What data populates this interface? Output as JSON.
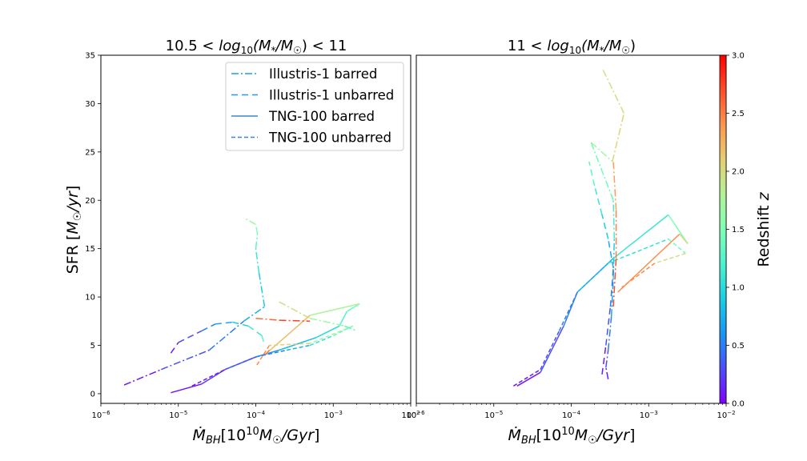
{
  "chart_data": [
    {
      "type": "line",
      "title": "10.5 < log10(M*/M☉) < 11",
      "title_parts": {
        "a": "10.5 < ",
        "b": "log",
        "sub": "10",
        "c": "(M",
        "d": "*",
        "e": "/M",
        "f": "☉",
        "g": ") < 11"
      },
      "xlabel": "Ṁ_BH [10^10 M☉/Gyr]",
      "ylabel": "SFR [M☉/yr]",
      "xscale": "log",
      "xlim": [
        1e-06,
        0.01
      ],
      "ylim": [
        -1,
        35
      ],
      "yticks": [
        "0",
        "5",
        "10",
        "15",
        "20",
        "25",
        "30",
        "35"
      ],
      "xticks": [
        {
          "base": "10",
          "exp": "−6"
        },
        {
          "base": "10",
          "exp": "−5"
        },
        {
          "base": "10",
          "exp": "−4"
        },
        {
          "base": "10",
          "exp": "−3"
        },
        {
          "base": "10",
          "exp": "−2"
        }
      ],
      "grid": false,
      "legend_position": "upper-right",
      "series": [
        {
          "name": "Illustris-1 barred",
          "style": "dashdot",
          "x": [
            2e-06,
            6e-06,
            2.5e-05,
            7e-05,
            0.00013,
            0.00011,
            0.0001,
            0.000105,
            0.0001,
            7e-05
          ],
          "y": [
            0.9,
            2.5,
            4.5,
            7.5,
            9.0,
            12.5,
            15.0,
            16.5,
            17.5,
            18.2
          ],
          "z": [
            0.0,
            0.2,
            0.4,
            0.6,
            0.8,
            1.0,
            1.2,
            1.4,
            1.6,
            1.8
          ]
        },
        {
          "name": "Illustris-1 unbarred",
          "style": "dashed",
          "x": [
            8e-06,
            1e-05,
            2e-05,
            3e-05,
            5e-05,
            8e-05,
            0.00012,
            0.00013
          ],
          "y": [
            4.2,
            5.3,
            6.5,
            7.2,
            7.4,
            7.0,
            6.0,
            5.0
          ],
          "z": [
            0.0,
            0.2,
            0.4,
            0.6,
            0.8,
            1.0,
            1.2,
            1.4
          ]
        },
        {
          "name": "TNG-100 barred",
          "style": "solid",
          "x": [
            8e-06,
            2e-05,
            4e-05,
            0.0001,
            0.0002,
            0.0006,
            0.0012,
            0.0015,
            0.0022,
            0.0005,
            0.00013,
            0.00015
          ],
          "y": [
            0.1,
            1.0,
            2.5,
            3.8,
            4.5,
            5.8,
            7.0,
            8.5,
            9.3,
            8.1,
            4.0,
            4.5
          ],
          "z": [
            0.0,
            0.15,
            0.3,
            0.5,
            0.7,
            0.9,
            1.1,
            1.3,
            1.5,
            2.0,
            2.4,
            2.6
          ]
        },
        {
          "name": "TNG-100 unbarred",
          "style": "longdash",
          "x": [
            1.5e-05,
            4e-05,
            0.0001,
            0.00025,
            0.0005,
            0.001,
            0.0018,
            0.0005,
            0.00015,
            0.0001
          ],
          "y": [
            0.8,
            2.5,
            3.8,
            4.5,
            5.0,
            6.0,
            7.0,
            5.2,
            5.0,
            2.8
          ],
          "z": [
            0.0,
            0.2,
            0.4,
            0.6,
            0.9,
            1.2,
            1.5,
            1.9,
            2.3,
            2.6
          ]
        },
        {
          "name": "Illustris-1 barred (high z)",
          "style": "dashdot",
          "x": [
            0.0001,
            0.0002,
            0.0005
          ],
          "y": [
            7.8,
            7.6,
            7.5
          ],
          "z": [
            2.5,
            2.7,
            2.8
          ]
        },
        {
          "name": "Illustris-1 barred (mid z)",
          "style": "dashdot",
          "x": [
            0.0002,
            0.0005,
            0.0014,
            0.002
          ],
          "y": [
            9.5,
            7.8,
            7.0,
            6.5
          ],
          "z": [
            1.9,
            2.1,
            1.2,
            1.3
          ]
        }
      ]
    },
    {
      "type": "line",
      "title": "11 < log10(M*/M☉)",
      "title_parts": {
        "a": "11 < ",
        "b": "log",
        "sub": "10",
        "c": "(M",
        "d": "*",
        "e": "/M",
        "f": "☉",
        "g": ")"
      },
      "xlabel": "Ṁ_BH [10^10 M☉/Gyr]",
      "xscale": "log",
      "xlim": [
        1e-06,
        0.01
      ],
      "ylim": [
        -1,
        35
      ],
      "xticks": [
        {
          "base": "10",
          "exp": "−6"
        },
        {
          "base": "10",
          "exp": "−5"
        },
        {
          "base": "10",
          "exp": "−4"
        },
        {
          "base": "10",
          "exp": "−3"
        },
        {
          "base": "10",
          "exp": "−2"
        }
      ],
      "grid": false,
      "series": [
        {
          "name": "Illustris-1 barred",
          "style": "dashdot",
          "x": [
            0.0003,
            0.00028,
            0.0003,
            0.00033,
            0.00035,
            0.00036,
            0.00035,
            0.00018,
            0.00034,
            0.00048,
            0.00025
          ],
          "y": [
            1.5,
            2.7,
            4.5,
            8.0,
            12.0,
            16.0,
            20.0,
            26.0,
            24.0,
            29.0,
            33.7
          ],
          "z": [
            0.0,
            0.2,
            0.4,
            0.6,
            0.8,
            1.0,
            1.3,
            1.5,
            1.9,
            2.2,
            1.7
          ]
        },
        {
          "name": "Illustris-1 unbarred",
          "style": "dashed",
          "x": [
            0.00025,
            0.00028,
            0.00032,
            0.00035,
            0.0003,
            0.00025,
            0.0002,
            0.00017
          ],
          "y": [
            2.0,
            5.0,
            9.0,
            13.0,
            16.0,
            18.5,
            21.5,
            24.0
          ],
          "z": [
            0.0,
            0.2,
            0.4,
            0.6,
            0.8,
            1.0,
            1.2,
            1.4
          ]
        },
        {
          "name": "TNG-100 barred",
          "style": "solid",
          "x": [
            2e-05,
            4e-05,
            8e-05,
            0.00012,
            0.00035,
            0.0018,
            0.0032,
            0.0025,
            0.0004
          ],
          "y": [
            0.8,
            2.2,
            7.0,
            10.5,
            14.0,
            18.5,
            15.5,
            16.5,
            10.5
          ],
          "z": [
            0.0,
            0.2,
            0.4,
            0.6,
            0.9,
            1.3,
            1.7,
            2.3,
            2.6
          ]
        },
        {
          "name": "TNG-100 unbarred",
          "style": "longdash",
          "x": [
            1.8e-05,
            4e-05,
            7e-05,
            0.00012,
            0.0003,
            0.0018,
            0.003,
            0.0012,
            0.00045
          ],
          "y": [
            0.8,
            2.5,
            6.5,
            10.5,
            13.5,
            16.0,
            14.5,
            13.5,
            11.0
          ],
          "z": [
            0.0,
            0.2,
            0.4,
            0.6,
            0.9,
            1.2,
            1.6,
            2.3,
            2.6
          ]
        },
        {
          "name": "Illustris-1 barred (spike)",
          "style": "dashdot",
          "x": [
            0.00035,
            0.00038,
            0.00038,
            0.00035
          ],
          "y": [
            9.0,
            14.0,
            19.0,
            24.0
          ],
          "z": [
            2.8,
            2.6,
            2.4,
            2.3
          ]
        }
      ]
    }
  ],
  "colorbar": {
    "label": "Redshift z",
    "range": [
      0,
      3
    ],
    "ticks": [
      "0.0",
      "0.5",
      "1.0",
      "1.5",
      "2.0",
      "2.5",
      "3.0"
    ],
    "colormap": "rainbow"
  },
  "legend": {
    "entries": [
      {
        "label": "Illustris-1 barred",
        "style": "dashdot",
        "color": "#1f9ee8"
      },
      {
        "label": "Illustris-1 unbarred",
        "style": "dashed",
        "color": "#1f9ee8"
      },
      {
        "label": "TNG-100 barred",
        "style": "solid",
        "color": "#3b87c9"
      },
      {
        "label": "TNG-100 unbarred",
        "style": "longdash",
        "color": "#3b87c9"
      }
    ]
  },
  "overlap_tick_label": {
    "base": "10",
    "exp": "−6"
  }
}
